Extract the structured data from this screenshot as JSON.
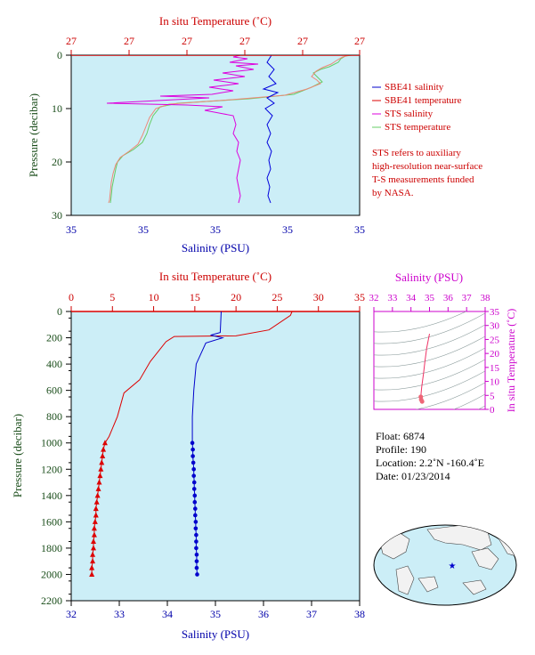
{
  "chart_data": [
    {
      "type": "line",
      "title": "",
      "x_top_label": "In situ Temperature (˚C)",
      "x_top_ticks": [
        "27",
        "27",
        "27",
        "27",
        "27",
        "27"
      ],
      "x_bottom_label": "Salinity (PSU)",
      "x_bottom_ticks": [
        "35",
        "35",
        "35",
        "35",
        "35"
      ],
      "ylabel": "Pressure (decibar)",
      "y_ticks": [
        "0",
        "10",
        "20",
        "30"
      ],
      "ylim": [
        0,
        30
      ],
      "legend_position": "right",
      "series": [
        {
          "name": "SBE41 salinity",
          "color": "#0000cc"
        },
        {
          "name": "SBE41 temperature",
          "color": "#dd0000"
        },
        {
          "name": "STS salinity",
          "color": "#dd00dd"
        },
        {
          "name": "STS temperature",
          "color": "#66cc66"
        }
      ],
      "note": [
        "STS refers to auxiliary",
        "high-resolution near-surface",
        "T-S measurements funded",
        "by NASA."
      ]
    },
    {
      "type": "line",
      "title": "",
      "x_top_label": "In situ Temperature (˚C)",
      "x_top_ticks": [
        "0",
        "5",
        "10",
        "15",
        "20",
        "25",
        "30",
        "35"
      ],
      "xlim_temperature": [
        0,
        35
      ],
      "x_bottom_label": "Salinity (PSU)",
      "x_bottom_ticks": [
        "32",
        "33",
        "34",
        "35",
        "36",
        "37",
        "38"
      ],
      "xlim_salinity": [
        32,
        38
      ],
      "ylabel": "Pressure (decibar)",
      "y_ticks": [
        "0",
        "200",
        "400",
        "600",
        "800",
        "1000",
        "1200",
        "1400",
        "1600",
        "1800",
        "2000",
        "2200"
      ],
      "ylim": [
        0,
        2200
      ],
      "grid": false,
      "series": [
        {
          "name": "temperature",
          "color": "#dd0000",
          "x": [
            26.8,
            26.6,
            24,
            20,
            12.5,
            11.5,
            9.6,
            8.3,
            6.4,
            5.6,
            4.6,
            4.1
          ],
          "y": [
            0,
            30,
            140,
            185,
            190,
            230,
            380,
            520,
            620,
            800,
            950,
            1000
          ]
        },
        {
          "name": "salinity",
          "color": "#0000cc",
          "x": [
            35.12,
            35.1,
            34.9,
            35.15,
            34.8,
            34.6,
            34.55,
            34.52,
            34.52
          ],
          "y": [
            0,
            160,
            180,
            200,
            240,
            400,
            600,
            800,
            1000
          ]
        }
      ],
      "deep_points": {
        "pressure": [
          1000,
          1050,
          1100,
          1150,
          1200,
          1250,
          1300,
          1350,
          1400,
          1450,
          1500,
          1550,
          1600,
          1650,
          1700,
          1750,
          1800,
          1850,
          1900,
          1950,
          2000
        ],
        "temperature": [
          4.1,
          3.9,
          3.8,
          3.7,
          3.6,
          3.5,
          3.4,
          3.3,
          3.2,
          3.1,
          3.0,
          3.0,
          2.9,
          2.8,
          2.8,
          2.7,
          2.7,
          2.6,
          2.6,
          2.5,
          2.5
        ],
        "salinity": [
          34.52,
          34.53,
          34.53,
          34.54,
          34.55,
          34.55,
          34.56,
          34.56,
          34.57,
          34.57,
          34.58,
          34.58,
          34.59,
          34.59,
          34.6,
          34.6,
          34.6,
          34.61,
          34.61,
          34.61,
          34.62
        ]
      }
    },
    {
      "type": "scatter",
      "title": "",
      "x_top_label": "Salinity (PSU)",
      "x_ticks": [
        "32",
        "33",
        "34",
        "35",
        "36",
        "37",
        "38"
      ],
      "xlim": [
        32,
        38
      ],
      "ylabel": "In situ Temperature (˚C)",
      "y_ticks": [
        "0",
        "5",
        "10",
        "15",
        "20",
        "25",
        "30",
        "35"
      ],
      "ylim": [
        0,
        35
      ],
      "series": [
        {
          "name": "T-S",
          "color": "#ee3366",
          "x": [
            35.0,
            34.85,
            34.75,
            34.68,
            34.62,
            34.58,
            34.55,
            34.53,
            34.55,
            34.6
          ],
          "y": [
            27,
            22,
            17,
            13,
            10,
            8,
            6,
            4.5,
            3.5,
            2.8
          ]
        }
      ]
    }
  ],
  "float_info": {
    "float": "Float: 6874",
    "profile": "Profile: 190",
    "location": "Location: 2.2˚N -160.4˚E",
    "date": "Date: 01/23/2014"
  },
  "map": {
    "marker_lat": 2.2,
    "marker_lon": -160.4
  }
}
